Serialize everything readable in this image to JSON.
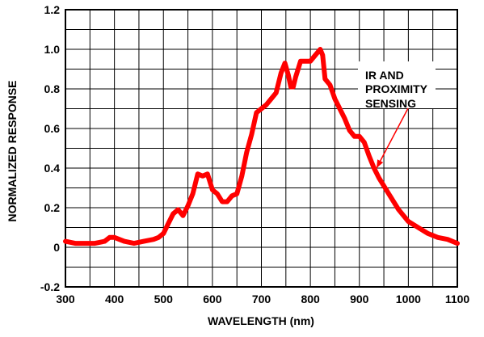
{
  "chart_data": {
    "type": "line",
    "xlabel": "WAVELENGTH (nm)",
    "ylabel": "NORMALIZED RESPONSE",
    "xlim": [
      300,
      1100
    ],
    "ylim": [
      -0.2,
      1.2
    ],
    "x_ticks": [
      "300",
      "400",
      "500",
      "600",
      "700",
      "800",
      "900",
      "1000",
      "1100"
    ],
    "y_ticks": [
      "-0.2",
      "0",
      "0.2",
      "0.4",
      "0.6",
      "0.8",
      "1.0",
      "1.2"
    ],
    "grid": true,
    "annotation": {
      "lines": [
        "IR AND",
        "PROXIMITY",
        "SENSING"
      ],
      "points_to": [
        935,
        0.4
      ]
    },
    "line_color": "#ff0000",
    "series": [
      {
        "x": [
          300,
          320,
          340,
          360,
          380,
          390,
          400,
          410,
          420,
          440,
          460,
          480,
          490,
          500,
          510,
          520,
          530,
          540,
          550,
          560,
          570,
          580,
          590,
          600,
          610,
          620,
          630,
          640,
          650,
          660,
          670,
          680,
          690,
          700,
          710,
          720,
          730,
          740,
          748,
          755,
          760,
          765,
          770,
          780,
          790,
          800,
          810,
          820,
          825,
          830,
          840,
          850,
          860,
          870,
          880,
          890,
          900,
          910,
          920,
          930,
          940,
          960,
          980,
          1000,
          1020,
          1040,
          1060,
          1080,
          1100
        ],
        "values": [
          0.03,
          0.02,
          0.02,
          0.02,
          0.03,
          0.05,
          0.05,
          0.04,
          0.03,
          0.02,
          0.03,
          0.04,
          0.05,
          0.07,
          0.12,
          0.17,
          0.19,
          0.16,
          0.21,
          0.27,
          0.37,
          0.36,
          0.37,
          0.29,
          0.27,
          0.23,
          0.23,
          0.26,
          0.27,
          0.36,
          0.48,
          0.57,
          0.68,
          0.7,
          0.72,
          0.75,
          0.78,
          0.88,
          0.93,
          0.87,
          0.81,
          0.81,
          0.86,
          0.94,
          0.94,
          0.94,
          0.97,
          1.0,
          0.97,
          0.85,
          0.82,
          0.75,
          0.7,
          0.65,
          0.59,
          0.56,
          0.56,
          0.53,
          0.46,
          0.4,
          0.35,
          0.27,
          0.19,
          0.13,
          0.1,
          0.07,
          0.05,
          0.04,
          0.02
        ]
      }
    ]
  }
}
